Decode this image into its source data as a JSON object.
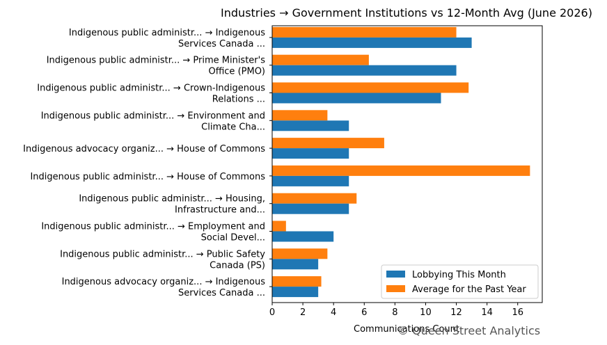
{
  "chart_data": {
    "type": "bar",
    "orientation": "horizontal",
    "title": "Industries → Government Institutions vs 12-Month Avg (June 2026)",
    "xlabel": "Communications Count",
    "ylabel": "",
    "xlim": [
      0,
      17.6
    ],
    "xticks": [
      "0",
      "2",
      "4",
      "6",
      "8",
      "10",
      "12",
      "14",
      "16"
    ],
    "grid": false,
    "legend_position": "lower-right",
    "categories": [
      [
        "Indigenous public administr... → Indigenous",
        "Services Canada ..."
      ],
      [
        "Indigenous public administr... → Prime Minister's",
        "Office (PMO)"
      ],
      [
        "Indigenous public administr... → Crown-Indigenous",
        "Relations ..."
      ],
      [
        "Indigenous public administr... → Environment and",
        "Climate Cha..."
      ],
      [
        "Indigenous advocacy organiz... → House of Commons"
      ],
      [
        "Indigenous public administr... → House of Commons"
      ],
      [
        "Indigenous public administr... → Housing,",
        "Infrastructure and..."
      ],
      [
        "Indigenous public administr... → Employment and",
        "Social Devel..."
      ],
      [
        "Indigenous public administr... → Public Safety",
        "Canada (PS)"
      ],
      [
        "Indigenous advocacy organiz... → Indigenous",
        "Services Canada ..."
      ]
    ],
    "series": [
      {
        "name": "Lobbying This Month",
        "color": "#1f77b4",
        "values": [
          13,
          12,
          11,
          5,
          5,
          5,
          5,
          4,
          3,
          3
        ]
      },
      {
        "name": "Average for the Past Year",
        "color": "#ff7f0e",
        "values": [
          12.0,
          6.3,
          12.8,
          3.6,
          7.3,
          16.8,
          5.5,
          0.9,
          3.6,
          3.2
        ]
      }
    ]
  },
  "watermark": "© Queen Street Analytics"
}
